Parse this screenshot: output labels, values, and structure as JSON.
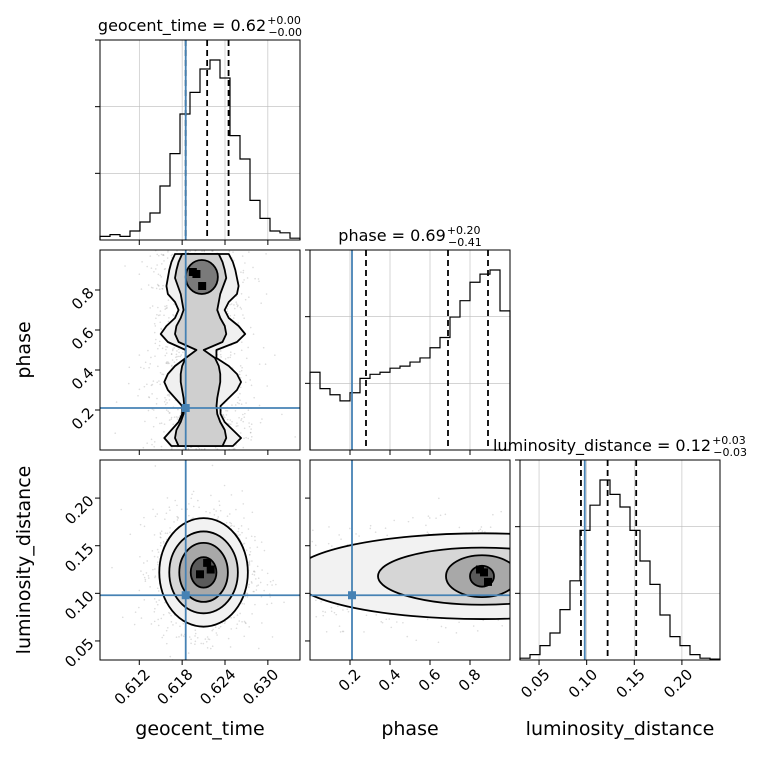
{
  "chart_data": {
    "type": "corner",
    "colors": {
      "truth": "#4682b4",
      "hist": "#000000",
      "grid": "#bbbbbb",
      "samples": "#9a9a9a"
    },
    "parameters": [
      {
        "name": "geocent_time",
        "range": [
          0.6065,
          0.6345
        ],
        "ticks": [
          0.612,
          0.618,
          0.624,
          0.63
        ],
        "tick_labels": [
          "0.612",
          "0.618",
          "0.624",
          "0.630"
        ],
        "truth": 0.6185,
        "quantiles": [
          0.6185,
          0.6215,
          0.6245
        ],
        "title": {
          "prefix": "geocent_time = ",
          "value": "0.62",
          "plus": "+0.00",
          "minus": "−0.00"
        },
        "histogram": {
          "bin_edges": [
            0.6065,
            0.6079,
            0.6093,
            0.6107,
            0.6121,
            0.6135,
            0.6149,
            0.6163,
            0.6177,
            0.6191,
            0.6205,
            0.6219,
            0.6233,
            0.6247,
            0.6261,
            0.6275,
            0.6289,
            0.6303,
            0.6317,
            0.6331,
            0.6345
          ],
          "counts": [
            0.02,
            0.03,
            0.02,
            0.05,
            0.1,
            0.15,
            0.3,
            0.48,
            0.7,
            0.82,
            0.95,
            1.0,
            0.9,
            0.58,
            0.45,
            0.22,
            0.12,
            0.05,
            0.04,
            0.01
          ]
        }
      },
      {
        "name": "phase",
        "range": [
          0.0,
          1.0
        ],
        "ticks": [
          0.2,
          0.4,
          0.6,
          0.8
        ],
        "tick_labels": [
          "0.2",
          "0.4",
          "0.6",
          "0.8"
        ],
        "truth": 0.21,
        "quantiles": [
          0.28,
          0.69,
          0.89
        ],
        "title": {
          "prefix": "phase = ",
          "value": "0.69",
          "plus": "+0.20",
          "minus": "−0.41"
        },
        "histogram": {
          "bin_edges": [
            0.0,
            0.05,
            0.1,
            0.15,
            0.2,
            0.25,
            0.3,
            0.35,
            0.4,
            0.45,
            0.5,
            0.55,
            0.6,
            0.65,
            0.7,
            0.75,
            0.8,
            0.85,
            0.9,
            0.95,
            1.0
          ],
          "counts": [
            0.38,
            0.3,
            0.27,
            0.24,
            0.28,
            0.35,
            0.37,
            0.38,
            0.4,
            0.41,
            0.43,
            0.45,
            0.5,
            0.55,
            0.65,
            0.73,
            0.82,
            0.86,
            0.88,
            0.68
          ]
        }
      },
      {
        "name": "luminosity_distance",
        "range": [
          0.03,
          0.24
        ],
        "ticks": [
          0.05,
          0.1,
          0.15,
          0.2
        ],
        "tick_labels": [
          "0.05",
          "0.10",
          "0.15",
          "0.20"
        ],
        "truth": 0.098,
        "quantiles": [
          0.094,
          0.122,
          0.152
        ],
        "title": {
          "prefix": "luminosity_distance = ",
          "value": "0.12",
          "plus": "+0.03",
          "minus": "−0.03"
        },
        "histogram": {
          "bin_edges": [
            0.03,
            0.0405,
            0.051,
            0.0615,
            0.072,
            0.0825,
            0.093,
            0.1035,
            0.114,
            0.1245,
            0.135,
            0.1455,
            0.156,
            0.1665,
            0.177,
            0.1875,
            0.198,
            0.2085,
            0.219,
            0.2295,
            0.24
          ],
          "counts": [
            0.01,
            0.03,
            0.08,
            0.15,
            0.28,
            0.44,
            0.72,
            0.86,
            1.0,
            0.92,
            0.85,
            0.72,
            0.55,
            0.42,
            0.25,
            0.13,
            0.08,
            0.03,
            0.01,
            0.005
          ]
        }
      }
    ],
    "pairs": [
      {
        "x": 0,
        "y": 1,
        "ridge_x": 0.6205,
        "levels": [
          {
            "xs": [
              0.6165,
              0.6155,
              0.6165,
              0.6175,
              0.618,
              0.618,
              0.617,
              0.616,
              0.6155,
              0.616,
              0.617,
              0.6185,
              0.6225,
              0.625,
              0.626,
              0.6252,
              0.624,
              0.6235,
              0.624,
              0.625,
              0.6252,
              0.625,
              0.6248,
              0.6245,
              0.624
            ],
            "y0": 0.02,
            "y1": 0.98
          },
          {
            "xs": [
              0.6175,
              0.617,
              0.6172,
              0.6178,
              0.6182,
              0.6183,
              0.6182,
              0.618,
              0.6178,
              0.6178,
              0.618,
              0.6185,
              0.621,
              0.6235,
              0.624,
              0.6238,
              0.6232,
              0.6228,
              0.623,
              0.6232,
              0.6236,
              0.624,
              0.6238,
              0.6235,
              0.623
            ],
            "y0": 0.02,
            "y1": 0.98
          }
        ],
        "inner": [
          {
            "x": [
              0.6185,
              0.623
            ],
            "y": [
              0.78,
              0.95
            ]
          }
        ],
        "peaks": [
          {
            "x": 0.62,
            "y": 0.88
          },
          {
            "x": 0.6208,
            "y": 0.82
          },
          {
            "x": 0.6195,
            "y": 0.89
          }
        ]
      },
      {
        "x": 0,
        "y": 2,
        "center": [
          0.621,
          0.122
        ],
        "levels": [
          {
            "rx": 0.0062,
            "ry": 0.057
          },
          {
            "rx": 0.0048,
            "ry": 0.043
          },
          {
            "rx": 0.0034,
            "ry": 0.031
          },
          {
            "rx": 0.0018,
            "ry": 0.016
          }
        ],
        "peaks": [
          {
            "x": 0.6215,
            "y": 0.132
          },
          {
            "x": 0.6205,
            "y": 0.12
          },
          {
            "x": 0.622,
            "y": 0.125
          }
        ]
      },
      {
        "x": 1,
        "y": 2,
        "center": [
          0.86,
          0.118
        ],
        "levels": [
          {
            "rx": 0.95,
            "ry": 0.045
          },
          {
            "rx": 0.52,
            "ry": 0.03
          },
          {
            "rx": 0.18,
            "ry": 0.022
          },
          {
            "rx": 0.06,
            "ry": 0.011
          }
        ],
        "peaks": [
          {
            "x": 0.87,
            "y": 0.122
          },
          {
            "x": 0.89,
            "y": 0.112
          },
          {
            "x": 0.85,
            "y": 0.125
          }
        ]
      }
    ]
  }
}
